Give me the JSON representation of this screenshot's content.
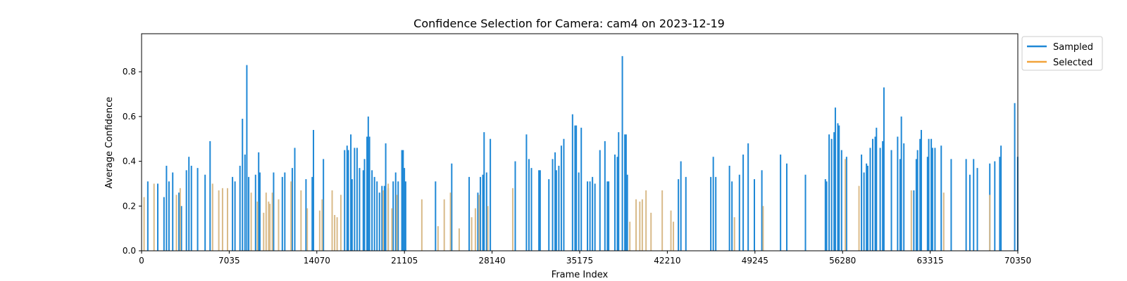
{
  "chart_data": {
    "type": "bar",
    "title": "Confidence Selection for Camera: cam4 on 2023-12-19",
    "xlabel": "Frame Index",
    "ylabel": "Average Confidence",
    "xlim": [
      0,
      70350
    ],
    "ylim": [
      0,
      0.97
    ],
    "xticks": [
      0,
      7035,
      14070,
      21105,
      28140,
      35175,
      42210,
      49245,
      56280,
      63315,
      70350
    ],
    "yticks": [
      0.0,
      0.2,
      0.4,
      0.6,
      0.8
    ],
    "grid": false,
    "legend_position": "top-right-outside",
    "series": [
      {
        "name": "Sampled",
        "color": "#1f88d6",
        "points": [
          [
            500,
            0.31
          ],
          [
            1300,
            0.3
          ],
          [
            1800,
            0.24
          ],
          [
            2000,
            0.38
          ],
          [
            2200,
            0.31
          ],
          [
            2500,
            0.35
          ],
          [
            3000,
            0.26
          ],
          [
            3200,
            0.2
          ],
          [
            3600,
            0.36
          ],
          [
            3800,
            0.42
          ],
          [
            4000,
            0.38
          ],
          [
            4500,
            0.37
          ],
          [
            5100,
            0.34
          ],
          [
            5500,
            0.49
          ],
          [
            7300,
            0.33
          ],
          [
            7500,
            0.31
          ],
          [
            7900,
            0.38
          ],
          [
            8100,
            0.59
          ],
          [
            8300,
            0.43
          ],
          [
            8450,
            0.83
          ],
          [
            8600,
            0.33
          ],
          [
            9150,
            0.34
          ],
          [
            9400,
            0.44
          ],
          [
            9500,
            0.35
          ],
          [
            10600,
            0.35
          ],
          [
            11300,
            0.33
          ],
          [
            11500,
            0.35
          ],
          [
            12100,
            0.37
          ],
          [
            12300,
            0.46
          ],
          [
            13200,
            0.32
          ],
          [
            13700,
            0.33
          ],
          [
            13800,
            0.54
          ],
          [
            14600,
            0.41
          ],
          [
            16300,
            0.45
          ],
          [
            16500,
            0.47
          ],
          [
            16600,
            0.45
          ],
          [
            16800,
            0.52
          ],
          [
            16900,
            0.32
          ],
          [
            17100,
            0.46
          ],
          [
            17300,
            0.46
          ],
          [
            17500,
            0.37
          ],
          [
            17800,
            0.36
          ],
          [
            17900,
            0.41
          ],
          [
            18100,
            0.51
          ],
          [
            18200,
            0.6
          ],
          [
            18300,
            0.51
          ],
          [
            18500,
            0.36
          ],
          [
            18700,
            0.33
          ],
          [
            18900,
            0.31
          ],
          [
            19100,
            0.26
          ],
          [
            19300,
            0.29
          ],
          [
            19500,
            0.29
          ],
          [
            19600,
            0.48
          ],
          [
            19800,
            0.28
          ],
          [
            20200,
            0.31
          ],
          [
            20400,
            0.35
          ],
          [
            20600,
            0.31
          ],
          [
            20900,
            0.45
          ],
          [
            21000,
            0.45
          ],
          [
            21100,
            0.37
          ],
          [
            21200,
            0.31
          ],
          [
            23600,
            0.31
          ],
          [
            24900,
            0.39
          ],
          [
            26300,
            0.33
          ],
          [
            27000,
            0.26
          ],
          [
            27200,
            0.33
          ],
          [
            27400,
            0.34
          ],
          [
            27500,
            0.53
          ],
          [
            27700,
            0.35
          ],
          [
            28000,
            0.5
          ],
          [
            30000,
            0.4
          ],
          [
            30900,
            0.52
          ],
          [
            31100,
            0.41
          ],
          [
            31300,
            0.37
          ],
          [
            31900,
            0.36
          ],
          [
            32000,
            0.36
          ],
          [
            32700,
            0.32
          ],
          [
            33000,
            0.41
          ],
          [
            33200,
            0.44
          ],
          [
            33300,
            0.36
          ],
          [
            33500,
            0.38
          ],
          [
            33700,
            0.47
          ],
          [
            33900,
            0.5
          ],
          [
            34600,
            0.61
          ],
          [
            34800,
            0.56
          ],
          [
            34900,
            0.56
          ],
          [
            35100,
            0.35
          ],
          [
            35300,
            0.55
          ],
          [
            35800,
            0.31
          ],
          [
            36000,
            0.31
          ],
          [
            36200,
            0.33
          ],
          [
            36400,
            0.3
          ],
          [
            36800,
            0.45
          ],
          [
            37200,
            0.49
          ],
          [
            37400,
            0.31
          ],
          [
            37500,
            0.31
          ],
          [
            38000,
            0.43
          ],
          [
            38200,
            0.42
          ],
          [
            38300,
            0.53
          ],
          [
            38600,
            0.87
          ],
          [
            38800,
            0.52
          ],
          [
            38900,
            0.52
          ],
          [
            39000,
            0.34
          ],
          [
            43100,
            0.32
          ],
          [
            43300,
            0.4
          ],
          [
            43700,
            0.33
          ],
          [
            45700,
            0.33
          ],
          [
            45900,
            0.42
          ],
          [
            46100,
            0.33
          ],
          [
            47200,
            0.38
          ],
          [
            47400,
            0.31
          ],
          [
            48000,
            0.34
          ],
          [
            48300,
            0.43
          ],
          [
            48700,
            0.48
          ],
          [
            49200,
            0.32
          ],
          [
            49800,
            0.36
          ],
          [
            51300,
            0.43
          ],
          [
            51800,
            0.39
          ],
          [
            53300,
            0.34
          ],
          [
            54900,
            0.32
          ],
          [
            55000,
            0.31
          ],
          [
            55200,
            0.52
          ],
          [
            55400,
            0.5
          ],
          [
            55600,
            0.53
          ],
          [
            55700,
            0.64
          ],
          [
            55900,
            0.57
          ],
          [
            56000,
            0.56
          ],
          [
            56200,
            0.45
          ],
          [
            56600,
            0.42
          ],
          [
            57800,
            0.43
          ],
          [
            58000,
            0.35
          ],
          [
            58200,
            0.39
          ],
          [
            58300,
            0.38
          ],
          [
            58500,
            0.46
          ],
          [
            58700,
            0.5
          ],
          [
            58900,
            0.51
          ],
          [
            59000,
            0.55
          ],
          [
            59300,
            0.46
          ],
          [
            59500,
            0.49
          ],
          [
            59600,
            0.73
          ],
          [
            60200,
            0.45
          ],
          [
            60700,
            0.51
          ],
          [
            60900,
            0.41
          ],
          [
            61000,
            0.6
          ],
          [
            61200,
            0.48
          ],
          [
            62000,
            0.27
          ],
          [
            62200,
            0.41
          ],
          [
            62300,
            0.45
          ],
          [
            62500,
            0.5
          ],
          [
            62600,
            0.54
          ],
          [
            63100,
            0.42
          ],
          [
            63200,
            0.5
          ],
          [
            63400,
            0.5
          ],
          [
            63500,
            0.46
          ],
          [
            63700,
            0.46
          ],
          [
            64200,
            0.47
          ],
          [
            65000,
            0.41
          ],
          [
            66200,
            0.41
          ],
          [
            66500,
            0.34
          ],
          [
            66800,
            0.41
          ],
          [
            67100,
            0.37
          ],
          [
            68100,
            0.39
          ],
          [
            68500,
            0.4
          ],
          [
            68900,
            0.42
          ],
          [
            69000,
            0.47
          ],
          [
            70100,
            0.66
          ],
          [
            70340,
            0.42
          ]
        ]
      },
      {
        "name": "Selected",
        "color": "#d9bb8a",
        "points": [
          [
            200,
            0.24
          ],
          [
            1000,
            0.3
          ],
          [
            2800,
            0.25
          ],
          [
            3100,
            0.28
          ],
          [
            5700,
            0.3
          ],
          [
            6200,
            0.27
          ],
          [
            6500,
            0.28
          ],
          [
            6900,
            0.28
          ],
          [
            8800,
            0.26
          ],
          [
            9300,
            0.22
          ],
          [
            9800,
            0.17
          ],
          [
            10000,
            0.26
          ],
          [
            10200,
            0.22
          ],
          [
            10300,
            0.21
          ],
          [
            10500,
            0.26
          ],
          [
            11000,
            0.23
          ],
          [
            12000,
            0.31
          ],
          [
            12800,
            0.27
          ],
          [
            13300,
            0.19
          ],
          [
            14300,
            0.18
          ],
          [
            14500,
            0.23
          ],
          [
            15300,
            0.27
          ],
          [
            15500,
            0.16
          ],
          [
            15700,
            0.15
          ],
          [
            16000,
            0.25
          ],
          [
            19400,
            0.27
          ],
          [
            19800,
            0.3
          ],
          [
            20100,
            0.19
          ],
          [
            20500,
            0.25
          ],
          [
            22500,
            0.23
          ],
          [
            23800,
            0.11
          ],
          [
            24300,
            0.23
          ],
          [
            24800,
            0.26
          ],
          [
            25500,
            0.1
          ],
          [
            26500,
            0.15
          ],
          [
            26800,
            0.19
          ],
          [
            27100,
            0.25
          ],
          [
            27800,
            0.2
          ],
          [
            29800,
            0.28
          ],
          [
            39200,
            0.13
          ],
          [
            39700,
            0.23
          ],
          [
            40000,
            0.22
          ],
          [
            40200,
            0.23
          ],
          [
            40500,
            0.27
          ],
          [
            40900,
            0.17
          ],
          [
            41800,
            0.27
          ],
          [
            42500,
            0.18
          ],
          [
            42700,
            0.13
          ],
          [
            47600,
            0.15
          ],
          [
            49900,
            0.2
          ],
          [
            56500,
            0.41
          ],
          [
            57600,
            0.29
          ],
          [
            61800,
            0.27
          ],
          [
            64400,
            0.26
          ],
          [
            68100,
            0.25
          ]
        ]
      }
    ]
  }
}
